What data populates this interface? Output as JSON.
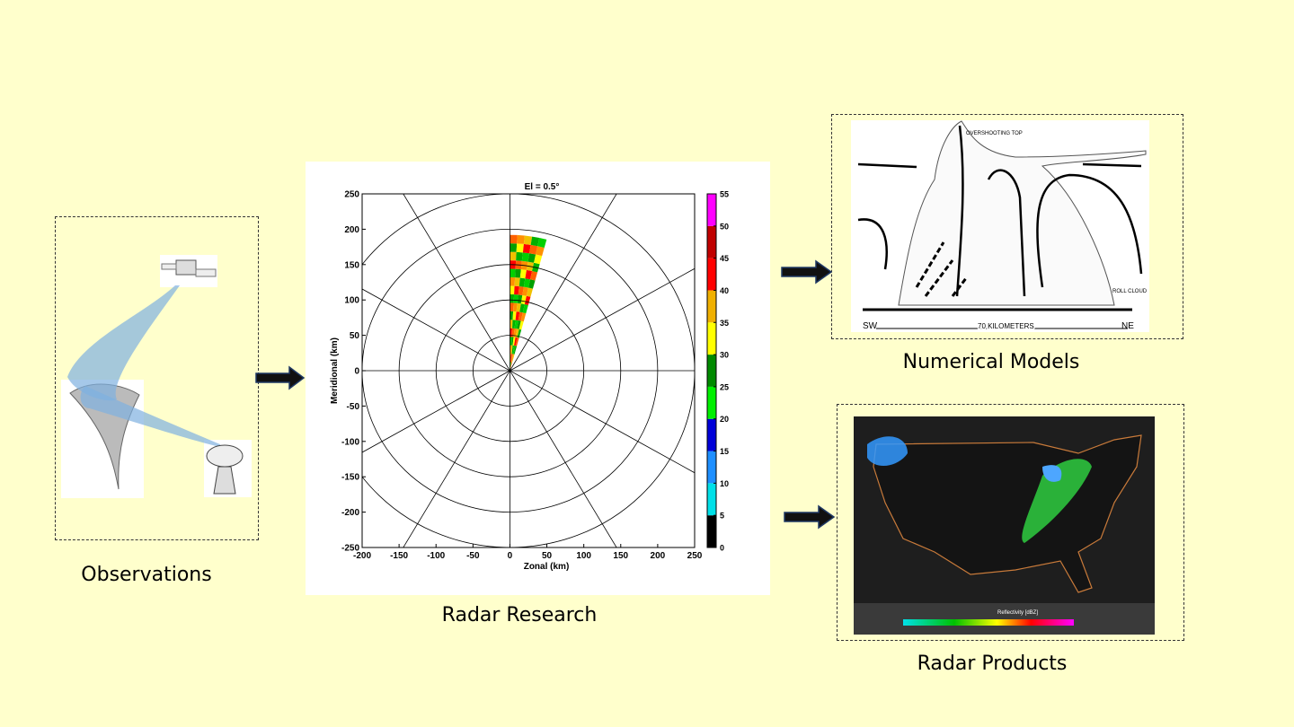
{
  "labels": {
    "observations": "Observations",
    "radar_research": "Radar Research",
    "numerical_models": "Numerical Models",
    "radar_products": "Radar Products"
  },
  "storm_diagram": {
    "top_label": "OVERSHOOTING TOP",
    "left_dir": "SW",
    "right_dir": "NE",
    "scale_label": "70 KILOMETERS",
    "roll_cloud": "ROLL CLOUD"
  },
  "radar_map": {
    "legend_title": "Reflectivity [dBZ]"
  },
  "radar_plot": {
    "type": "polar",
    "title": "El = 0.5°",
    "xlabel": "Zonal (km)",
    "ylabel": "Meridional (km)",
    "xlim": [
      -200,
      250
    ],
    "ylim": [
      -250,
      250
    ],
    "xticks": [
      -200,
      -150,
      -100,
      -50,
      0,
      50,
      100,
      150,
      200,
      250
    ],
    "yticks": [
      -250,
      -200,
      -150,
      -100,
      -50,
      0,
      50,
      100,
      150,
      200,
      250
    ],
    "range_rings": [
      50,
      100,
      150,
      200,
      250
    ],
    "colorbar_lim": [
      0,
      55
    ],
    "colorbar_ticks": [
      0,
      5,
      10,
      15,
      20,
      25,
      30,
      35,
      40,
      45,
      50,
      55
    ],
    "colorbar_colors": [
      "#000000",
      "#00e0e8",
      "#1e8fff",
      "#0000d8",
      "#00f000",
      "#008a00",
      "#ffff00",
      "#f0b000",
      "#ff0000",
      "#c00000",
      "#ff00ff"
    ]
  }
}
